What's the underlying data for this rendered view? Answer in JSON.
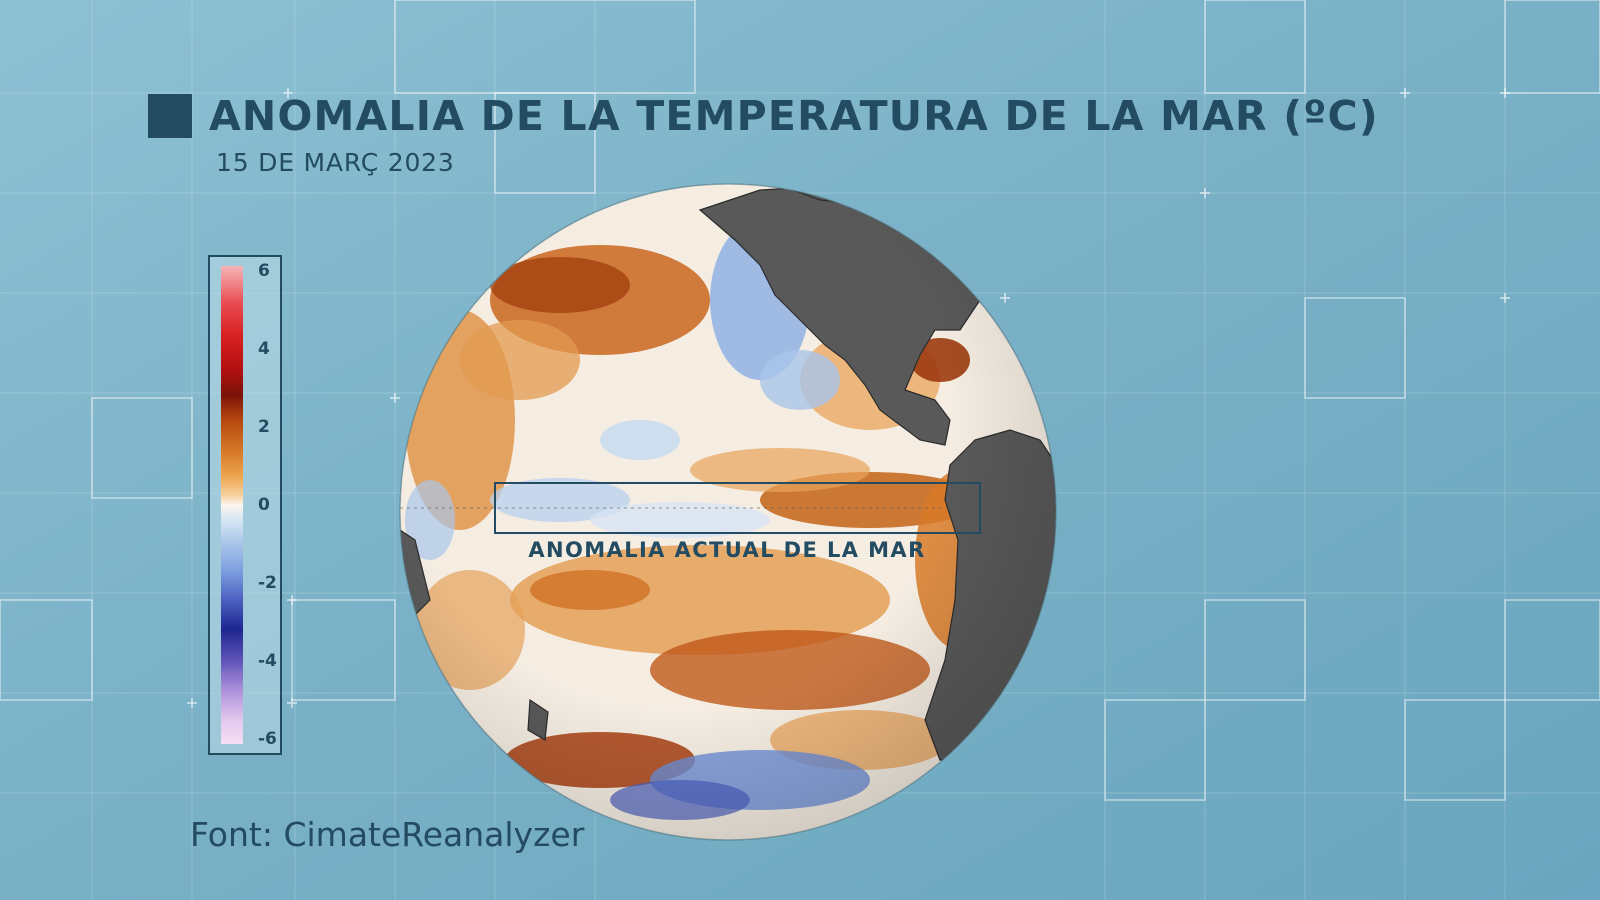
{
  "header": {
    "title": "ANOMALIA DE LA TEMPERATURA DE LA MAR (ºC)",
    "date": "15 DE MARÇ 2023"
  },
  "legend": {
    "ticks": [
      {
        "value": 6,
        "label": "6"
      },
      {
        "value": 4,
        "label": "4"
      },
      {
        "value": 2,
        "label": "2"
      },
      {
        "value": 0,
        "label": "0"
      },
      {
        "value": -2,
        "label": "-2"
      },
      {
        "value": -4,
        "label": "-4"
      },
      {
        "value": -6,
        "label": "-6"
      }
    ],
    "range": [
      -6,
      6
    ]
  },
  "map": {
    "highlight_label": "ANOMALIA ACTUAL DE LA MAR",
    "land_color": "#595959",
    "warm_color": "#d97f2e",
    "cool_color": "#9ebfe8",
    "neutral_color": "#f7f2ec"
  },
  "footer": {
    "source": "Font: CimateReanalyzer"
  },
  "colors": {
    "accent": "#234b61",
    "background": "#7fb4c8"
  }
}
